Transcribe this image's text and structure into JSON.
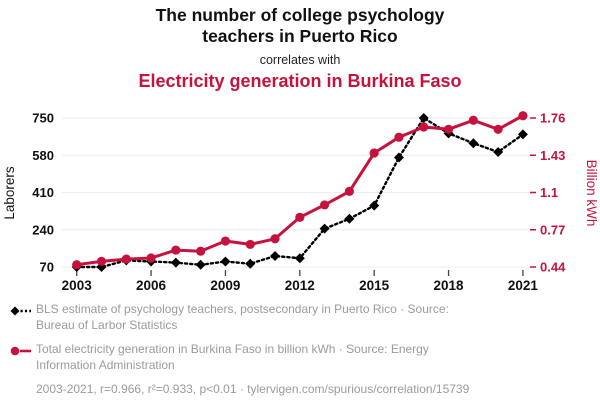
{
  "header": {
    "title_lines": [
      "The number of college psychology",
      "teachers in Puerto Rico"
    ],
    "connector": "correlates with",
    "subtitle": "Electricity generation in Burkina Faso"
  },
  "colors": {
    "accent_crimson": "#c5133e",
    "series_black": "#000000",
    "legend_gray": "#9b9b9b",
    "gridline": "#ececec"
  },
  "chart_data": {
    "type": "line",
    "x": [
      2003,
      2004,
      2005,
      2006,
      2007,
      2008,
      2009,
      2010,
      2011,
      2012,
      2013,
      2014,
      2015,
      2016,
      2017,
      2018,
      2019,
      2020,
      2021
    ],
    "x_tick_labels": [
      "2003",
      "2006",
      "2009",
      "2012",
      "2015",
      "2018",
      "2021"
    ],
    "grid": "horizontal-only",
    "series": [
      {
        "name": "BLS estimate of psychology teachers, postsecondary in Puerto Rico",
        "axis": "left",
        "color": "#000000",
        "style": "dotted",
        "marker": "diamond",
        "values": [
          70,
          70,
          100,
          95,
          90,
          80,
          95,
          85,
          120,
          110,
          245,
          290,
          350,
          570,
          750,
          680,
          635,
          595,
          675
        ]
      },
      {
        "name": "Total electricity generation in Burkina Faso in billion kWh",
        "axis": "right",
        "color": "#c5133e",
        "style": "solid",
        "marker": "circle",
        "values": [
          0.46,
          0.49,
          0.51,
          0.52,
          0.59,
          0.58,
          0.67,
          0.64,
          0.69,
          0.88,
          0.99,
          1.11,
          1.45,
          1.59,
          1.68,
          1.66,
          1.74,
          1.66,
          1.78
        ]
      }
    ],
    "left_axis": {
      "label": "Laborers",
      "ticks": [
        70,
        240,
        410,
        580,
        750
      ],
      "range": [
        70,
        750
      ]
    },
    "right_axis": {
      "label": "Billion kWh",
      "ticks": [
        0.44,
        0.77,
        1.1,
        1.43,
        1.76
      ],
      "range": [
        0.44,
        1.76
      ]
    }
  },
  "legend": {
    "items": [
      {
        "marker": "black-diamond-dashed",
        "lines": [
          "BLS estimate of psychology teachers, postsecondary in Puerto Rico · Source:",
          "Bureau of Larbor Statistics"
        ]
      },
      {
        "marker": "red-circle-solid",
        "lines": [
          "Total electricity generation in Burkina Faso in billion kWh · Source: Energy",
          "Information Administration"
        ]
      }
    ],
    "footer": "2003-2021, r=0.966, r²=0.933, p<0.01 · tylervigen.com/spurious/correlation/15739"
  }
}
